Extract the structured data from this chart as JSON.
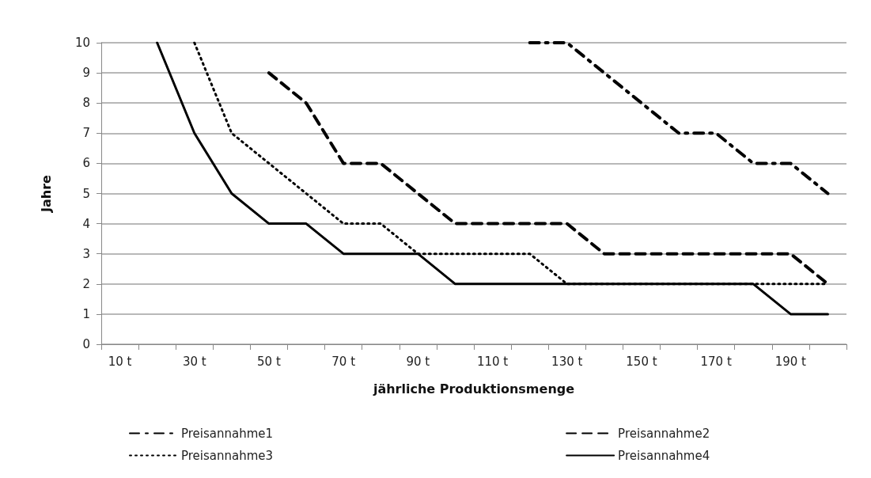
{
  "chart_data": {
    "type": "line",
    "xlabel": "jährliche Produktionsmenge",
    "ylabel": "Jahre",
    "categories": [
      "10 t",
      null,
      "30 t",
      null,
      "50 t",
      null,
      "70 t",
      null,
      "90 t",
      null,
      "110 t",
      null,
      "130 t",
      null,
      "150 t",
      null,
      "170 t",
      null,
      "190 t",
      null
    ],
    "series": [
      {
        "name": "Preisannahme1",
        "color": "#000000",
        "line_style": "dashdot",
        "values": [
          null,
          null,
          null,
          null,
          null,
          null,
          null,
          null,
          null,
          null,
          null,
          10,
          10,
          9,
          8,
          7,
          7,
          6,
          6,
          5
        ]
      },
      {
        "name": "Preisannahme2",
        "color": "#000000",
        "line_style": "dashed",
        "values": [
          null,
          null,
          null,
          null,
          9,
          8,
          6,
          6,
          5,
          4,
          4,
          4,
          4,
          3,
          3,
          3,
          3,
          3,
          3,
          2
        ]
      },
      {
        "name": "Preisannahme3",
        "color": "#000000",
        "line_style": "dotted",
        "values": [
          null,
          null,
          10,
          7,
          6,
          5,
          4,
          4,
          3,
          3,
          3,
          3,
          2,
          2,
          2,
          2,
          2,
          2,
          2,
          2
        ]
      },
      {
        "name": "Preisannahme4",
        "color": "#000000",
        "line_style": "solid",
        "values": [
          null,
          10,
          7,
          5,
          4,
          4,
          3,
          3,
          3,
          2,
          2,
          2,
          2,
          2,
          2,
          2,
          2,
          2,
          1,
          1
        ]
      }
    ],
    "ylim": [
      0,
      10
    ],
    "yticks": [
      0,
      1,
      2,
      3,
      4,
      5,
      6,
      7,
      8,
      9,
      10
    ],
    "grid": "y",
    "legend": "bottom",
    "marker": "none"
  }
}
